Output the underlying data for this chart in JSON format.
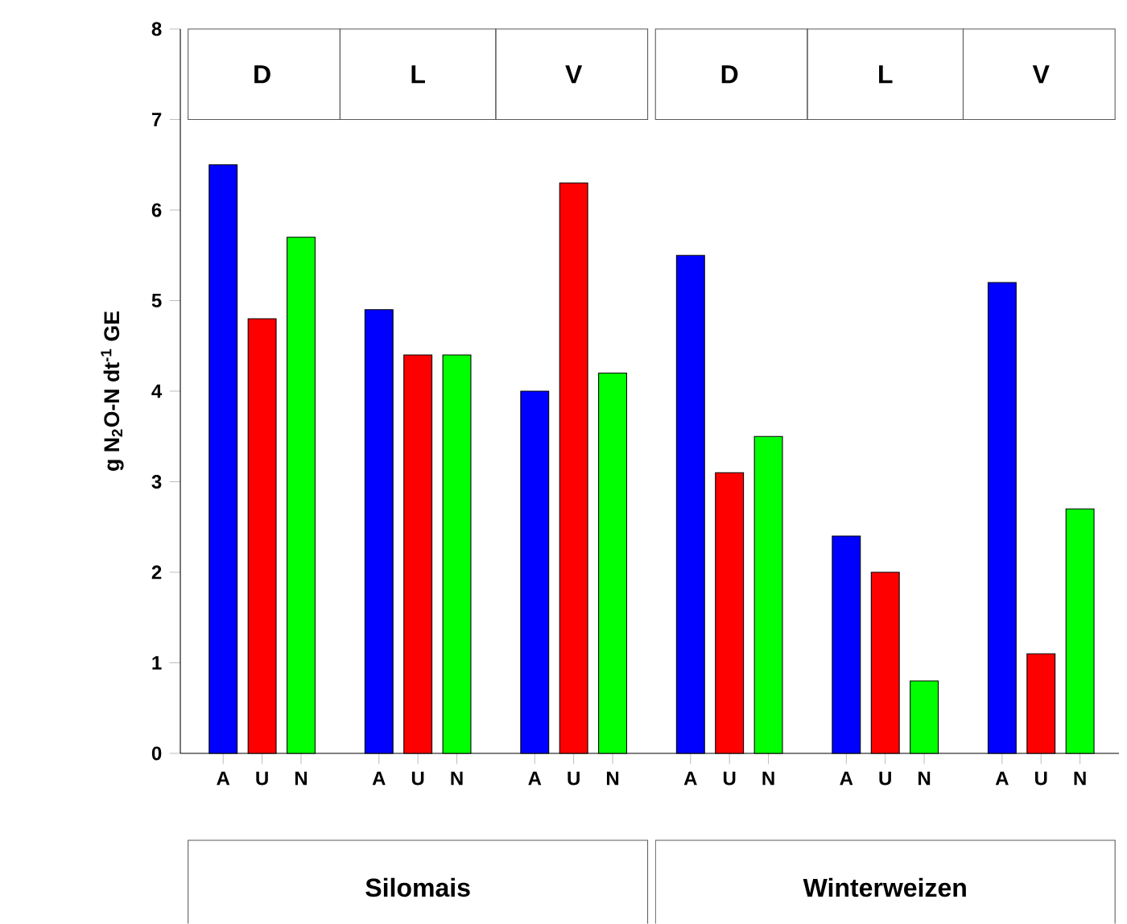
{
  "chart_data": {
    "type": "bar",
    "ylabel": "g N$_{2}$O-N dt$^{-1}$ GE",
    "categories": [
      "A",
      "U",
      "N",
      "A",
      "U",
      "N",
      "A",
      "U",
      "N",
      "A",
      "U",
      "N",
      "A",
      "U",
      "N",
      "A",
      "U",
      "N"
    ],
    "values": [
      6.5,
      4.8,
      5.7,
      4.9,
      4.4,
      4.4,
      4.0,
      6.3,
      4.2,
      5.5,
      3.1,
      3.5,
      2.4,
      2.0,
      0.8,
      5.2,
      1.1,
      2.7
    ],
    "colors": [
      "#0000ff",
      "#ff0000",
      "#00ff00",
      "#0000ff",
      "#ff0000",
      "#00ff00",
      "#0000ff",
      "#ff0000",
      "#00ff00",
      "#0000ff",
      "#ff0000",
      "#00ff00",
      "#0000ff",
      "#ff0000",
      "#00ff00",
      "#0000ff",
      "#ff0000",
      "#00ff00"
    ],
    "ylim": [
      0,
      8
    ],
    "yticks": [
      0,
      1,
      2,
      3,
      4,
      5,
      6,
      7,
      8
    ],
    "annotations": [
      "D",
      "L",
      "V",
      "D",
      "L",
      "V",
      "Silomais",
      "Winterweizen"
    ]
  }
}
